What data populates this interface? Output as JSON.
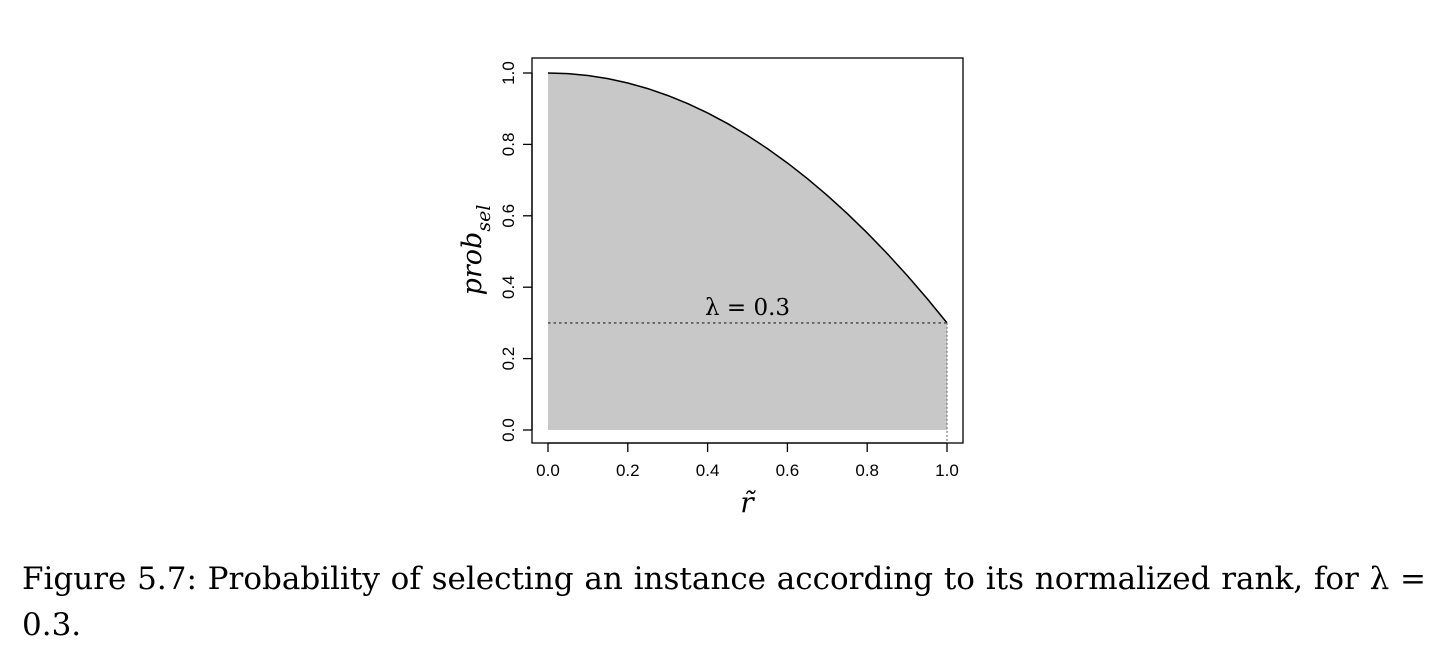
{
  "chart_data": {
    "type": "area",
    "x": [
      0.0,
      0.05,
      0.1,
      0.15,
      0.2,
      0.25,
      0.3,
      0.35,
      0.4,
      0.45,
      0.5,
      0.55,
      0.6,
      0.65,
      0.7,
      0.75,
      0.8,
      0.85,
      0.9,
      0.95,
      1.0
    ],
    "y": [
      1.0,
      0.9983,
      0.993,
      0.9843,
      0.972,
      0.9563,
      0.937,
      0.9143,
      0.888,
      0.8583,
      0.825,
      0.7883,
      0.748,
      0.7043,
      0.657,
      0.6063,
      0.552,
      0.4943,
      0.433,
      0.3683,
      0.3
    ],
    "xlabel": "r̃",
    "ylabel_main": "prob",
    "ylabel_sub": "sel",
    "xlim": [
      0.0,
      1.0
    ],
    "ylim": [
      0.0,
      1.0
    ],
    "x_ticks": [
      "0.0",
      "0.2",
      "0.4",
      "0.6",
      "0.8",
      "1.0"
    ],
    "y_ticks": [
      "0.0",
      "0.2",
      "0.4",
      "0.6",
      "0.8",
      "1.0"
    ],
    "fill_color": "#c8c8c8",
    "line_color": "#000000",
    "reference_line": {
      "y": 0.3,
      "style": "dotted"
    },
    "annotation": {
      "text": "λ = 0.3",
      "x": 0.5,
      "y": 0.3
    },
    "grid": false
  },
  "caption": {
    "text": "Figure 5.7: Probability of selecting an instance according to its normalized rank, for λ = 0.3."
  }
}
